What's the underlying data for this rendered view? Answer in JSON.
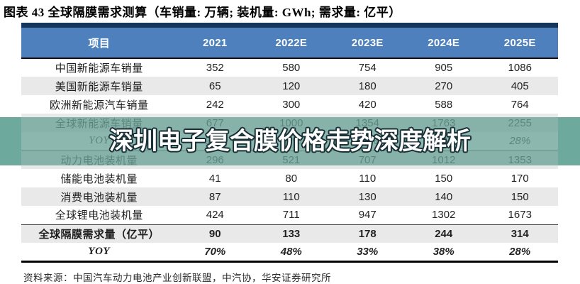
{
  "page": {
    "title": "图表 43 全球隔膜需求测算（车销量: 万辆; 装机量: GWh; 需求量: 亿平）",
    "source": "资料来源：中国汽车动力电池产业创新联盟，中汽协，华安证券研究所",
    "watermark_text": "深圳电子复合膜价格走势深度解析"
  },
  "colors": {
    "header_bg": "#4e80bd",
    "header_text": "#ffffff",
    "navy_bar": "#16365c",
    "stripe_gray": "#e9e9e9",
    "watermark_teal": "#6ea99e",
    "border_black": "#000000"
  },
  "table": {
    "columns": [
      "项目",
      "2021",
      "2022E",
      "2023E",
      "2024E",
      "2025E"
    ],
    "rows": [
      {
        "label": "中国新能源车销量",
        "values": [
          "352",
          "580",
          "754",
          "905",
          "1086"
        ]
      },
      {
        "label": "美国新能源车销量",
        "values": [
          "65",
          "120",
          "180",
          "270",
          "405"
        ]
      },
      {
        "label": "欧洲新能源汽车销量",
        "values": [
          "242",
          "300",
          "420",
          "588",
          "764"
        ]
      },
      {
        "label": "全球新能源车销量",
        "values": [
          "677",
          "1000",
          "1354",
          "1763",
          "2255"
        ]
      },
      {
        "label": "YOY",
        "values": [
          "92%",
          "48%",
          "35%",
          "30%",
          "28%"
        ]
      },
      {
        "label": "动力电池装机量",
        "values": [
          "296",
          "521",
          "707",
          "1012",
          "1353"
        ]
      },
      {
        "label": "储能电池装机量",
        "values": [
          "41",
          "80",
          "110",
          "150",
          "170"
        ]
      },
      {
        "label": "消费电池装机量",
        "values": [
          "87",
          "110",
          "130",
          "140",
          "150"
        ]
      },
      {
        "label": "全球锂电池装机量",
        "values": [
          "424",
          "711",
          "947",
          "1302",
          "1673"
        ]
      },
      {
        "label": "全球隔膜需求量（亿平）",
        "values": [
          "90",
          "133",
          "178",
          "244",
          "314"
        ]
      },
      {
        "label": "YOY",
        "values": [
          "70%",
          "48%",
          "33%",
          "38%",
          "28%"
        ]
      }
    ]
  }
}
